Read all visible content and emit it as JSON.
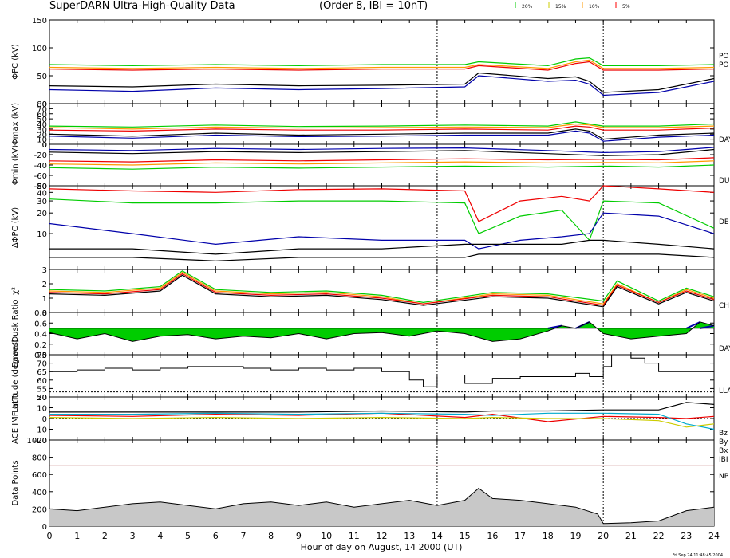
{
  "header": {
    "title": "SuperDARN Ultra-High-Quality Data",
    "subtitle": "(Order 8, IBI = 10nT)",
    "legend": [
      {
        "label": "20%",
        "color": "#00cc00"
      },
      {
        "label": "15%",
        "color": "#cccc00"
      },
      {
        "label": "10%",
        "color": "#ff9900"
      },
      {
        "label": "5%",
        "color": "#ff0000"
      }
    ]
  },
  "footer": {
    "xlabel": "Hour of day on August, 14 2000 (UT)",
    "stamp": "Fri Sep 24 11:48:45 2004"
  },
  "colors": {
    "green": "#00cc00",
    "red": "#ee0000",
    "orange": "#ff9900",
    "yellow": "#cccc00",
    "blue": "#0000aa",
    "black": "#000000",
    "gray": "#c8c8c8",
    "cyan": "#00aacc"
  },
  "chart_data": [
    {
      "id": "phipc",
      "type": "line",
      "ylabel": "ΦPC (kV)",
      "right_labels": [
        "PO",
        "PO"
      ],
      "x_range": [
        0,
        24
      ],
      "ylim": [
        0,
        150
      ],
      "yticks": [
        "0",
        "50",
        "100",
        "150"
      ],
      "series_colors": [
        "green",
        "orange",
        "red",
        "black",
        "blue"
      ],
      "x": [
        0,
        3,
        6,
        9,
        12,
        15,
        15.5,
        18,
        19,
        19.5,
        20,
        22,
        24
      ],
      "series": [
        {
          "values": [
            70,
            68,
            70,
            68,
            70,
            70,
            75,
            68,
            80,
            82,
            68,
            68,
            70
          ]
        },
        {
          "values": [
            65,
            63,
            65,
            63,
            65,
            65,
            70,
            63,
            75,
            78,
            63,
            63,
            65
          ]
        },
        {
          "values": [
            62,
            60,
            62,
            60,
            62,
            62,
            68,
            60,
            72,
            75,
            60,
            60,
            62
          ]
        },
        {
          "values": [
            32,
            30,
            35,
            32,
            33,
            35,
            55,
            45,
            48,
            40,
            20,
            25,
            45
          ]
        },
        {
          "values": [
            25,
            22,
            28,
            25,
            27,
            30,
            50,
            40,
            42,
            35,
            15,
            20,
            40
          ]
        }
      ]
    },
    {
      "id": "phimax",
      "type": "line",
      "ylabel": "Φmax (kV)",
      "right_labels": [
        "DAY"
      ],
      "x_range": [
        0,
        24
      ],
      "ylim": [
        0,
        80
      ],
      "yticks": [
        "0",
        "10",
        "20",
        "30",
        "40",
        "50",
        "60",
        "70",
        "80"
      ],
      "series_colors": [
        "green",
        "orange",
        "red",
        "black",
        "blue"
      ],
      "x": [
        0,
        3,
        6,
        9,
        12,
        15,
        18,
        19,
        19.5,
        20,
        22,
        24
      ],
      "series": [
        {
          "values": [
            36,
            34,
            38,
            35,
            36,
            38,
            36,
            44,
            40,
            36,
            36,
            40
          ]
        },
        {
          "values": [
            33,
            30,
            34,
            32,
            33,
            34,
            33,
            40,
            38,
            33,
            33,
            36
          ]
        },
        {
          "values": [
            28,
            26,
            30,
            28,
            28,
            30,
            28,
            36,
            34,
            28,
            28,
            32
          ]
        },
        {
          "values": [
            20,
            16,
            22,
            18,
            20,
            22,
            22,
            30,
            26,
            10,
            18,
            22
          ]
        },
        {
          "values": [
            16,
            12,
            18,
            15,
            16,
            18,
            18,
            26,
            22,
            6,
            14,
            18
          ]
        }
      ]
    },
    {
      "id": "phimin",
      "type": "line",
      "ylabel": "Φmin (kV)",
      "right_labels": [
        "DU"
      ],
      "x_range": [
        0,
        24
      ],
      "ylim": [
        -80,
        0
      ],
      "yticks": [
        "0",
        "-20",
        "-40",
        "-60",
        "-80"
      ],
      "series_colors": [
        "green",
        "orange",
        "red",
        "black",
        "blue"
      ],
      "x": [
        0,
        3,
        6,
        9,
        12,
        15,
        18,
        20,
        22,
        24
      ],
      "series": [
        {
          "values": [
            -45,
            -48,
            -44,
            -46,
            -44,
            -42,
            -44,
            -42,
            -44,
            -40
          ]
        },
        {
          "values": [
            -38,
            -40,
            -36,
            -38,
            -36,
            -34,
            -36,
            -35,
            -36,
            -32
          ]
        },
        {
          "values": [
            -32,
            -34,
            -30,
            -32,
            -30,
            -28,
            -30,
            -29,
            -30,
            -26
          ]
        },
        {
          "values": [
            -15,
            -18,
            -14,
            -16,
            -14,
            -12,
            -18,
            -22,
            -20,
            -10
          ]
        },
        {
          "values": [
            -10,
            -12,
            -8,
            -10,
            -8,
            -7,
            -12,
            -16,
            -14,
            -6
          ]
        }
      ]
    },
    {
      "id": "dphipc",
      "type": "line",
      "ylabel": "ΔΦPC (kV)",
      "right_labels": [
        "DE"
      ],
      "x_range": [
        0,
        24
      ],
      "ylim": [
        3,
        50
      ],
      "log": true,
      "yticks": [
        "10",
        "20",
        "30",
        "40",
        "50"
      ],
      "series_colors": [
        "red",
        "green",
        "blue",
        "black",
        "black"
      ],
      "x": [
        0,
        3,
        6,
        9,
        12,
        15,
        15.5,
        17,
        18.5,
        19.5,
        20,
        22,
        24
      ],
      "series": [
        {
          "values": [
            45,
            42,
            40,
            44,
            45,
            42,
            15,
            30,
            35,
            30,
            50,
            45,
            40
          ]
        },
        {
          "values": [
            32,
            28,
            28,
            30,
            30,
            28,
            10,
            18,
            22,
            8,
            30,
            28,
            12
          ]
        },
        {
          "values": [
            14,
            10,
            7,
            9,
            8,
            8,
            6,
            8,
            9,
            10,
            20,
            18,
            10
          ]
        },
        {
          "values": [
            6,
            6,
            5,
            6,
            6,
            7,
            7,
            7,
            7,
            8,
            8,
            7,
            6
          ]
        },
        {
          "values": [
            4.5,
            4.5,
            4,
            4.5,
            4.5,
            4.5,
            5,
            5,
            5,
            5,
            5,
            5,
            4.5
          ]
        }
      ]
    },
    {
      "id": "chi",
      "type": "line",
      "ylabel": "χ²",
      "right_labels": [
        "CH"
      ],
      "x_range": [
        0,
        24
      ],
      "ylim": [
        0,
        3
      ],
      "yticks": [
        "0",
        "1",
        "2",
        "3"
      ],
      "series_colors": [
        "green",
        "orange",
        "red",
        "black"
      ],
      "x": [
        0,
        2,
        4,
        4.8,
        6,
        8,
        10,
        12,
        13.5,
        16,
        18,
        20,
        20.5,
        22,
        23,
        24
      ],
      "series": [
        {
          "values": [
            1.6,
            1.5,
            1.8,
            2.9,
            1.6,
            1.4,
            1.5,
            1.2,
            0.7,
            1.4,
            1.3,
            0.8,
            2.2,
            0.8,
            1.7,
            1.1
          ]
        },
        {
          "values": [
            1.5,
            1.4,
            1.7,
            2.8,
            1.5,
            1.3,
            1.4,
            1.1,
            0.6,
            1.3,
            1.2,
            0.6,
            2.0,
            0.7,
            1.6,
            1.0
          ]
        },
        {
          "values": [
            1.4,
            1.3,
            1.6,
            2.7,
            1.4,
            1.2,
            1.3,
            1.0,
            0.6,
            1.2,
            1.1,
            0.5,
            1.9,
            0.7,
            1.5,
            0.9
          ]
        },
        {
          "values": [
            1.3,
            1.2,
            1.5,
            2.6,
            1.3,
            1.1,
            1.2,
            0.9,
            0.5,
            1.1,
            1.0,
            0.4,
            1.8,
            0.6,
            1.4,
            0.8
          ]
        }
      ]
    },
    {
      "id": "ratio",
      "type": "area",
      "ylabel": "Dawn/Dusk Ratio",
      "right_labels": [
        "DAY"
      ],
      "x_range": [
        0,
        24
      ],
      "ylim": [
        0,
        0.8
      ],
      "baseline": 0.5,
      "yticks": [
        "0.0",
        "0.2",
        "0.4",
        "0.6",
        "0.8"
      ],
      "series_colors": [
        "green",
        "blue"
      ],
      "x": [
        0,
        1,
        2,
        3,
        4,
        5,
        6,
        7,
        8,
        9,
        10,
        11,
        12,
        13,
        14,
        15,
        16,
        17,
        18,
        18.5,
        19,
        19.5,
        20,
        21,
        22,
        23,
        23.5,
        24
      ],
      "values": [
        0.42,
        0.3,
        0.4,
        0.25,
        0.35,
        0.38,
        0.3,
        0.35,
        0.32,
        0.4,
        0.3,
        0.4,
        0.42,
        0.35,
        0.45,
        0.4,
        0.25,
        0.3,
        0.45,
        0.55,
        0.5,
        0.62,
        0.4,
        0.3,
        0.35,
        0.4,
        0.62,
        0.55
      ]
    },
    {
      "id": "lat",
      "type": "step",
      "ylabel": "Latitude (degrees)",
      "right_labels": [
        "LLA"
      ],
      "x_range": [
        0,
        24
      ],
      "ylim": [
        50,
        75
      ],
      "ref_line": 53,
      "yticks": [
        "50",
        "55",
        "60",
        "65",
        "70",
        "75"
      ],
      "series_colors": [
        "black"
      ],
      "x": [
        0,
        1,
        2,
        3,
        4,
        5,
        6,
        7,
        8,
        9,
        10,
        11,
        12,
        13,
        13.5,
        14,
        15,
        16,
        17,
        18,
        19,
        19.5,
        20,
        20.3,
        21,
        21.5,
        22,
        23,
        24
      ],
      "values": [
        65,
        66,
        67,
        66,
        67,
        68,
        68,
        67,
        66,
        67,
        66,
        67,
        65,
        60,
        56,
        63,
        58,
        61,
        62,
        62,
        64,
        62,
        68,
        75,
        73,
        70,
        65,
        65,
        65
      ]
    },
    {
      "id": "imf",
      "type": "line",
      "ylabel": "ACE IMF (nT)",
      "right_labels": [
        "Bz",
        "By",
        "Bx",
        "IBI"
      ],
      "right_colors": [
        "red",
        "orange",
        "blue",
        "black"
      ],
      "x_range": [
        0,
        24
      ],
      "ylim": [
        -20,
        20
      ],
      "zero_line": true,
      "yticks": [
        "-20",
        "-10",
        "0",
        "10",
        "20"
      ],
      "series_colors": [
        "red",
        "yellow",
        "cyan",
        "black"
      ],
      "x": [
        0,
        3,
        6,
        9,
        12,
        15,
        16,
        18,
        20,
        22,
        23,
        24
      ],
      "series": [
        {
          "values": [
            3,
            2,
            4,
            3,
            5,
            1,
            4,
            -3,
            2,
            1,
            0,
            2
          ]
        },
        {
          "values": [
            1,
            0,
            1,
            0,
            1,
            0,
            1,
            0,
            0,
            -2,
            -8,
            -5
          ]
        },
        {
          "values": [
            4,
            4,
            5,
            4,
            5,
            4,
            3,
            5,
            5,
            4,
            -5,
            -10
          ]
        },
        {
          "values": [
            6,
            6,
            6,
            6,
            7,
            6,
            7,
            7,
            8,
            8,
            15,
            13
          ]
        }
      ]
    },
    {
      "id": "points",
      "type": "area",
      "ylabel": "Data Points",
      "right_labels": [
        "NP"
      ],
      "x_range": [
        0,
        24
      ],
      "ylim": [
        0,
        1000
      ],
      "ref_line": 700,
      "yticks": [
        "0",
        "200",
        "400",
        "600",
        "800",
        "1000"
      ],
      "xticks": [
        "0",
        "1",
        "2",
        "3",
        "4",
        "5",
        "6",
        "7",
        "8",
        "9",
        "10",
        "11",
        "12",
        "13",
        "14",
        "15",
        "16",
        "17",
        "18",
        "19",
        "20",
        "21",
        "22",
        "23",
        "24"
      ],
      "series_colors": [
        "gray"
      ],
      "x": [
        0,
        1,
        2,
        3,
        4,
        5,
        6,
        7,
        8,
        9,
        10,
        11,
        12,
        13,
        14,
        15,
        15.5,
        16,
        17,
        18,
        19,
        19.8,
        20,
        21,
        22,
        23,
        24
      ],
      "values": [
        200,
        180,
        220,
        260,
        280,
        240,
        200,
        260,
        280,
        240,
        280,
        220,
        260,
        300,
        240,
        300,
        440,
        320,
        300,
        260,
        220,
        140,
        30,
        40,
        60,
        180,
        220
      ]
    }
  ]
}
